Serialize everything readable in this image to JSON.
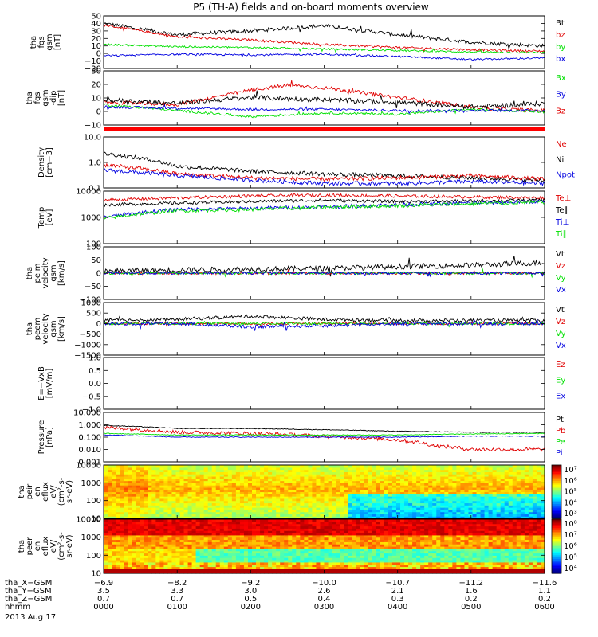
{
  "title": "P5 (TH-A) fields and on-board moments overview",
  "colors": {
    "black": "#000000",
    "red": "#e00000",
    "green": "#00e000",
    "blue": "#0000e0",
    "white": "#ffffff"
  },
  "chart_data": [
    {
      "type": "line",
      "id": "fgs-gsm",
      "ylabel": [
        "tha",
        "fgs",
        "gsm",
        "[nT]"
      ],
      "ylim": [
        -20,
        50
      ],
      "yscale": "linear",
      "yticks": [
        "50",
        "40",
        "30",
        "20",
        "10",
        "0",
        "−10",
        "−20"
      ],
      "legend": [
        {
          "label": "Bt",
          "color": "black"
        },
        {
          "label": "bz",
          "color": "red"
        },
        {
          "label": "by",
          "color": "green"
        },
        {
          "label": "bx",
          "color": "blue"
        }
      ],
      "series": [
        {
          "name": "Bt",
          "color": "black",
          "x": [
            0,
            1,
            2,
            3,
            4,
            5,
            6
          ],
          "values": [
            40,
            25,
            30,
            37,
            25,
            15,
            10
          ],
          "noise": 2.5
        },
        {
          "name": "bz",
          "color": "red",
          "x": [
            0,
            1,
            2,
            3,
            4,
            5,
            6
          ],
          "values": [
            38,
            22,
            18,
            12,
            8,
            5,
            3
          ],
          "noise": 1.5
        },
        {
          "name": "by",
          "color": "green",
          "x": [
            0,
            1,
            2,
            3,
            4,
            5,
            6
          ],
          "values": [
            12,
            9,
            8,
            6,
            4,
            2,
            1
          ],
          "noise": 1.2
        },
        {
          "name": "bx",
          "color": "blue",
          "x": [
            0,
            1,
            2,
            3,
            4,
            5,
            6
          ],
          "values": [
            -3,
            -1,
            -2,
            -1,
            -4,
            -8,
            -6
          ],
          "noise": 1.2
        }
      ]
    },
    {
      "type": "line",
      "id": "fgs-gsm-dip",
      "ylabel": [
        "tha",
        "fgs",
        "gsm",
        "-dip",
        "[nT]"
      ],
      "ylim": [
        -15,
        30
      ],
      "yscale": "linear",
      "yticks": [
        "30",
        "20",
        "10",
        "0",
        "−10"
      ],
      "legend": [
        {
          "label": "Bx",
          "color": "green"
        },
        {
          "label": "By",
          "color": "blue"
        },
        {
          "label": "Bz",
          "color": "red"
        }
      ],
      "series": [
        {
          "name": "Bz",
          "color": "red",
          "x": [
            0,
            1,
            1.5,
            2,
            2.5,
            3,
            3.5,
            4,
            4.5,
            5,
            5.5,
            6
          ],
          "values": [
            4,
            2,
            8,
            14,
            18,
            16,
            12,
            8,
            4,
            0,
            -2,
            -3
          ],
          "noise": 1.5
        },
        {
          "name": "Bt-dip",
          "color": "black",
          "x": [
            0,
            1,
            2,
            3,
            4,
            5,
            6
          ],
          "values": [
            6,
            3,
            8,
            6,
            4,
            0,
            3
          ],
          "noise": 2
        },
        {
          "name": "Bx",
          "color": "green",
          "x": [
            0,
            1,
            2,
            3,
            4,
            5,
            6
          ],
          "values": [
            2,
            -3,
            -8,
            -5,
            -6,
            -2,
            -4
          ],
          "noise": 1
        },
        {
          "name": "By",
          "color": "blue",
          "x": [
            0,
            1,
            2,
            3,
            4,
            5,
            6
          ],
          "values": [
            0,
            -1,
            -2,
            -2,
            -3,
            -3,
            -3
          ],
          "noise": 1
        }
      ]
    },
    {
      "type": "line",
      "id": "density",
      "ylabel": [
        "Density",
        "[cm−3]"
      ],
      "ylim": [
        0.1,
        10
      ],
      "yscale": "log",
      "yticks": [
        "10.0",
        "1.0",
        "0.1"
      ],
      "legend": [
        {
          "label": "Ne",
          "color": "red"
        },
        {
          "label": "Ni",
          "color": "black"
        },
        {
          "label": "Npot",
          "color": "blue"
        }
      ],
      "series": [
        {
          "name": "Ni",
          "color": "black",
          "x": [
            0,
            1,
            2,
            3,
            4,
            5,
            6
          ],
          "values": [
            2.2,
            0.7,
            0.45,
            0.35,
            0.3,
            0.25,
            0.2
          ],
          "noise": 0.08
        },
        {
          "name": "Ne",
          "color": "red",
          "x": [
            0,
            1,
            2,
            3,
            4,
            5,
            6
          ],
          "values": [
            0.8,
            0.35,
            0.25,
            0.22,
            0.25,
            0.3,
            0.22
          ],
          "noise": 0.08
        },
        {
          "name": "Npot",
          "color": "blue",
          "x": [
            0,
            1,
            2,
            3,
            4,
            5,
            6
          ],
          "values": [
            0.5,
            0.3,
            0.2,
            0.15,
            0.15,
            0.18,
            0.15
          ],
          "noise": 0.08
        }
      ]
    },
    {
      "type": "line",
      "id": "temperature",
      "ylabel": [
        "Temp",
        "[eV]"
      ],
      "ylim": [
        100,
        10000
      ],
      "yscale": "log",
      "yticks": [
        "10000",
        "1000",
        "100"
      ],
      "legend": [
        {
          "label": "Te⊥",
          "color": "red"
        },
        {
          "label": "Te∥",
          "color": "black"
        },
        {
          "label": "Ti⊥",
          "color": "blue"
        },
        {
          "label": "Ti∥",
          "color": "green"
        }
      ],
      "series": [
        {
          "name": "Te⊥",
          "color": "red",
          "x": [
            0,
            1,
            2,
            3,
            4,
            5,
            6
          ],
          "values": [
            4500,
            5500,
            6500,
            7000,
            6500,
            6000,
            5500
          ],
          "noise": 0.06
        },
        {
          "name": "Te∥",
          "color": "black",
          "x": [
            0,
            1,
            2,
            3,
            4,
            5,
            6
          ],
          "values": [
            3000,
            3500,
            4000,
            4500,
            4000,
            4200,
            4500
          ],
          "noise": 0.06
        },
        {
          "name": "Ti⊥",
          "color": "blue",
          "x": [
            0,
            1,
            2,
            3,
            4,
            5,
            6
          ],
          "values": [
            1000,
            2000,
            2200,
            2500,
            3000,
            3500,
            4000
          ],
          "noise": 0.07
        },
        {
          "name": "Ti∥",
          "color": "green",
          "x": [
            0,
            1,
            2,
            3,
            4,
            5,
            6
          ],
          "values": [
            900,
            1800,
            2000,
            2400,
            2800,
            3300,
            3800
          ],
          "noise": 0.07
        }
      ]
    },
    {
      "type": "line",
      "id": "peim-velocity",
      "ylabel": [
        "tha",
        "peim",
        "velocity",
        "gsm",
        "[km/s]"
      ],
      "ylim": [
        -100,
        100
      ],
      "yscale": "linear",
      "yticks": [
        "100",
        "50",
        "0",
        "−50",
        "−100"
      ],
      "legend": [
        {
          "label": "Vt",
          "color": "black"
        },
        {
          "label": "Vz",
          "color": "red"
        },
        {
          "label": "Vy",
          "color": "green"
        },
        {
          "label": "Vx",
          "color": "blue"
        }
      ],
      "series": [
        {
          "name": "Vt",
          "color": "black",
          "x": [
            0,
            1,
            2,
            3,
            4,
            5,
            6
          ],
          "values": [
            8,
            12,
            15,
            18,
            25,
            30,
            40
          ],
          "noise": 10
        },
        {
          "name": "Vz",
          "color": "red",
          "x": [
            0,
            1,
            2,
            3,
            4,
            5,
            6
          ],
          "values": [
            0,
            0,
            0,
            0,
            0,
            0,
            0
          ],
          "noise": 5
        },
        {
          "name": "Vy",
          "color": "green",
          "x": [
            0,
            1,
            2,
            3,
            4,
            5,
            6
          ],
          "values": [
            0,
            0,
            0,
            0,
            0,
            0,
            0
          ],
          "noise": 5
        },
        {
          "name": "Vx",
          "color": "blue",
          "x": [
            0,
            1,
            2,
            3,
            4,
            5,
            6
          ],
          "values": [
            0,
            0,
            0,
            0,
            0,
            0,
            0
          ],
          "noise": 5
        }
      ]
    },
    {
      "type": "line",
      "id": "peem-velocity",
      "ylabel": [
        "tha",
        "peem",
        "velocity",
        "gsm",
        "[km/s]"
      ],
      "ylim": [
        -1500,
        1000
      ],
      "yscale": "linear",
      "yticks": [
        "1000",
        "500",
        "0",
        "−500",
        "−1000",
        "−1500"
      ],
      "legend": [
        {
          "label": "Vt",
          "color": "black"
        },
        {
          "label": "Vz",
          "color": "red"
        },
        {
          "label": "Vy",
          "color": "green"
        },
        {
          "label": "Vx",
          "color": "blue"
        }
      ],
      "series": [
        {
          "name": "Vt",
          "color": "black",
          "x": [
            0,
            1,
            2,
            3,
            4,
            5,
            6
          ],
          "values": [
            150,
            200,
            350,
            200,
            150,
            150,
            150
          ],
          "noise": 80
        },
        {
          "name": "Vz",
          "color": "red",
          "x": [
            0,
            1,
            2,
            3,
            4,
            5,
            6
          ],
          "values": [
            0,
            0,
            0,
            0,
            0,
            0,
            0
          ],
          "noise": 60
        },
        {
          "name": "Vy",
          "color": "green",
          "x": [
            0,
            1,
            2,
            3,
            4,
            5,
            6
          ],
          "values": [
            0,
            0,
            0,
            0,
            0,
            0,
            0
          ],
          "noise": 60
        },
        {
          "name": "Vx",
          "color": "blue",
          "x": [
            0,
            1,
            2,
            3,
            4,
            5,
            6
          ],
          "values": [
            0,
            0,
            -150,
            -100,
            0,
            0,
            0
          ],
          "noise": 80
        }
      ]
    },
    {
      "type": "line",
      "id": "e-vxb",
      "ylabel": [
        "E=−VxB",
        "[mV/m]"
      ],
      "ylim": [
        -1,
        1
      ],
      "yscale": "linear",
      "yticks": [
        "1.0",
        "0.5",
        "0.0",
        "−0.5",
        "−1.0"
      ],
      "legend": [
        {
          "label": "Ez",
          "color": "red"
        },
        {
          "label": "Ey",
          "color": "green"
        },
        {
          "label": "Ex",
          "color": "blue"
        }
      ],
      "series": []
    },
    {
      "type": "line",
      "id": "pressure",
      "ylabel": [
        "Pressure",
        "[nPa]"
      ],
      "ylim": [
        0.001,
        10
      ],
      "yscale": "log",
      "yticks": [
        "10.000",
        "1.000",
        "0.100",
        "0.010",
        "0.001"
      ],
      "legend": [
        {
          "label": "Pt",
          "color": "black"
        },
        {
          "label": "Pb",
          "color": "red"
        },
        {
          "label": "Pe",
          "color": "green"
        },
        {
          "label": "Pi",
          "color": "blue"
        }
      ],
      "series": [
        {
          "name": "Pt",
          "color": "black",
          "x": [
            0,
            1,
            2,
            3,
            4,
            5,
            6
          ],
          "values": [
            0.9,
            0.5,
            0.5,
            0.4,
            0.3,
            0.25,
            0.25
          ],
          "noise": 0.03
        },
        {
          "name": "Pb",
          "color": "red",
          "x": [
            0,
            1,
            2,
            3,
            4,
            4.5,
            5,
            5.5,
            6
          ],
          "values": [
            0.6,
            0.25,
            0.2,
            0.12,
            0.06,
            0.02,
            0.01,
            0.01,
            0.01
          ],
          "noise": 0.15
        },
        {
          "name": "Pe",
          "color": "green",
          "x": [
            0,
            1,
            2,
            3,
            4,
            5,
            6
          ],
          "values": [
            0.2,
            0.15,
            0.15,
            0.15,
            0.15,
            0.18,
            0.2
          ],
          "noise": 0.03
        },
        {
          "name": "Pi",
          "color": "blue",
          "x": [
            0,
            1,
            2,
            3,
            4,
            5,
            6
          ],
          "values": [
            0.15,
            0.1,
            0.1,
            0.1,
            0.1,
            0.12,
            0.12
          ],
          "noise": 0.03
        }
      ]
    },
    {
      "type": "heatmap",
      "id": "peir-spectrogram",
      "ylabel": [
        "tha",
        "peir",
        "en",
        "eflux",
        "eV/",
        "(cm²-s-",
        "sr-eV)"
      ],
      "ylim": [
        10,
        30000
      ],
      "yscale": "log",
      "yticks": [
        "10000",
        "1000",
        "100",
        "10"
      ],
      "colorbar": {
        "ticks": [
          "10⁷",
          "10⁶",
          "10⁵",
          "10⁴",
          "10³"
        ],
        "range": [
          1000,
          10000000
        ]
      }
    },
    {
      "type": "heatmap",
      "id": "peer-spectrogram",
      "ylabel": [
        "tha",
        "peer",
        "en",
        "eflux",
        "eV/",
        "(cm²-s-",
        "sr-eV)"
      ],
      "ylim": [
        10,
        30000
      ],
      "yscale": "log",
      "yticks": [
        "10000",
        "1000",
        "100",
        "10"
      ],
      "colorbar": {
        "ticks": [
          "10⁸",
          "10⁷",
          "10⁶",
          "10⁵",
          "10⁴"
        ],
        "range": [
          10000,
          100000000
        ]
      }
    }
  ],
  "x_axis": {
    "rows": [
      {
        "label": "tha_X−GSM",
        "values": [
          "−6.9",
          "−8.2",
          "−9.2",
          "−10.0",
          "−10.7",
          "−11.2",
          "−11.6"
        ]
      },
      {
        "label": "tha_Y−GSM",
        "values": [
          "3.5",
          "3.3",
          "3.0",
          "2.6",
          "2.1",
          "1.6",
          "1.1"
        ]
      },
      {
        "label": "tha_Z−GSM",
        "values": [
          "0.7",
          "0.7",
          "0.5",
          "0.4",
          "0.3",
          "0.2",
          "0.2"
        ]
      },
      {
        "label": "hhmm",
        "values": [
          "0000",
          "0100",
          "0200",
          "0300",
          "0400",
          "0500",
          "0600"
        ]
      }
    ],
    "date": "2013 Aug 17"
  }
}
